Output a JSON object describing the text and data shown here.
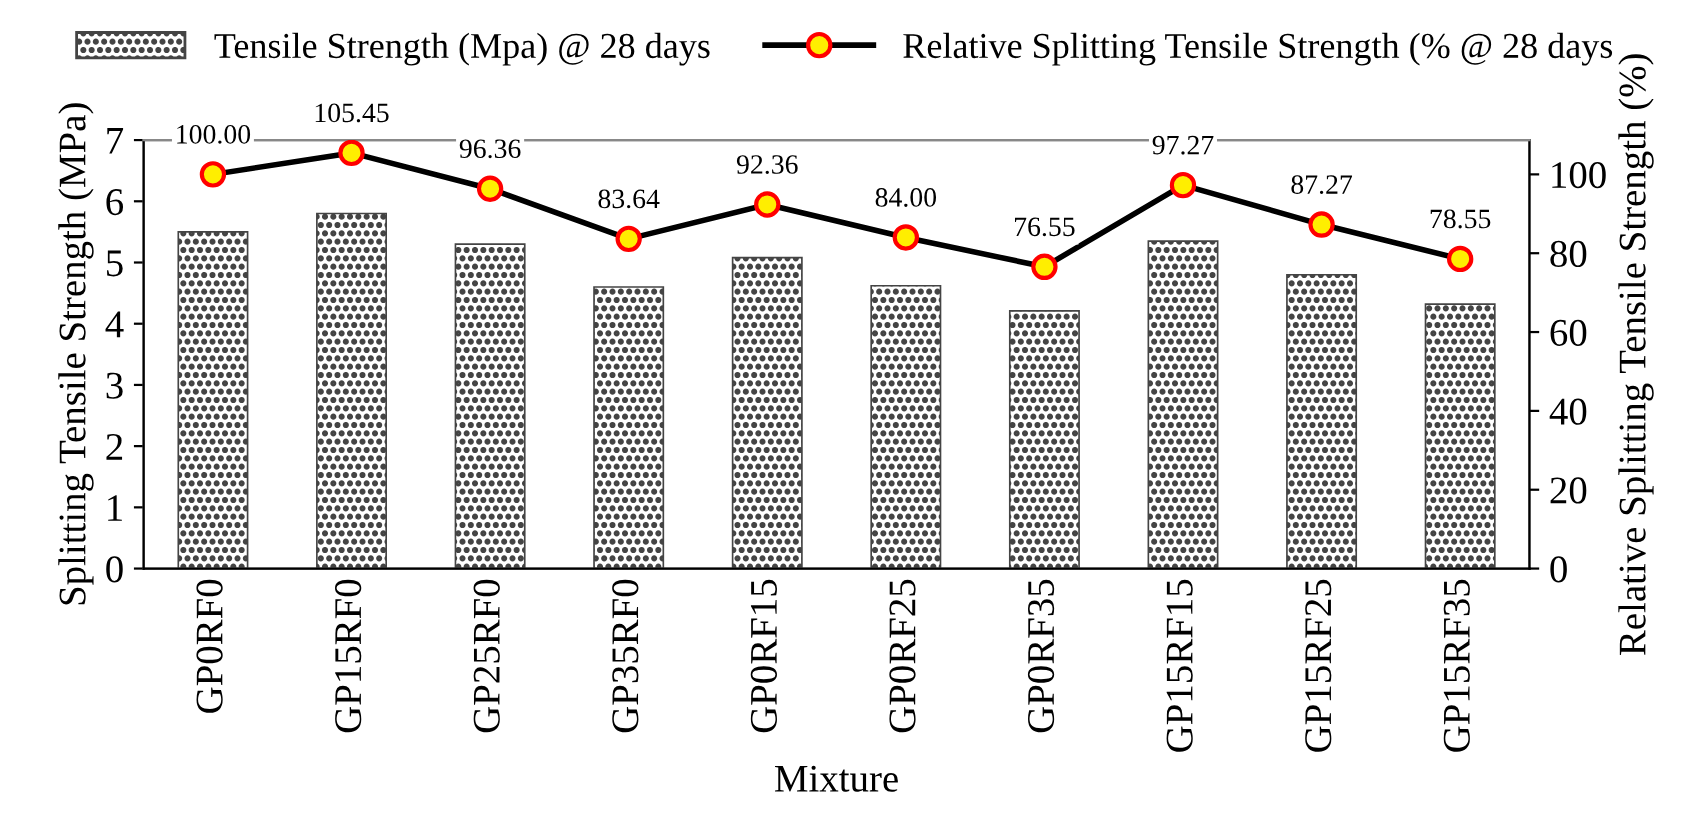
{
  "chart_data": {
    "type": "bar",
    "xlabel": "Mixture",
    "ylabel": "Splitting Tensile Strength (MPa)",
    "y2label": "Relative Splitting Tensile Strength (%)",
    "categories": [
      "GP0RF0",
      "GP15RF0",
      "GP25RF0",
      "GP35RF0",
      "GP0RF15",
      "GP0RF25",
      "GP0RF35",
      "GP15RF15",
      "GP15RF25",
      "GP15RF35"
    ],
    "series": [
      {
        "name": "Tensile Strength (Mpa) @ 28 days",
        "color": "#444444",
        "values": [
          5.5,
          5.8,
          5.3,
          4.6,
          5.08,
          4.62,
          4.21,
          5.35,
          4.8,
          4.32
        ]
      },
      {
        "name": "Relative Splitting Tensile Strength (% @ 28 days",
        "type": "line",
        "axis": "y2",
        "color": "#000000",
        "marker": "circle",
        "values": [
          100.0,
          105.45,
          96.36,
          83.64,
          92.36,
          84.0,
          76.55,
          97.27,
          87.27,
          78.55
        ],
        "value_labels": [
          "100.00",
          "105.45",
          "96.36",
          "83.64",
          "92.36",
          "84.00",
          "76.55",
          "97.27",
          "87.27",
          "78.55"
        ]
      }
    ],
    "ylim": [
      0,
      7
    ],
    "yticks": [
      0,
      1,
      2,
      3,
      4,
      5,
      6,
      7
    ],
    "y2lim": [
      0,
      108.7
    ],
    "y2ticks": [
      0,
      20,
      40,
      60,
      80,
      100
    ],
    "grid": false,
    "legend": "top"
  }
}
